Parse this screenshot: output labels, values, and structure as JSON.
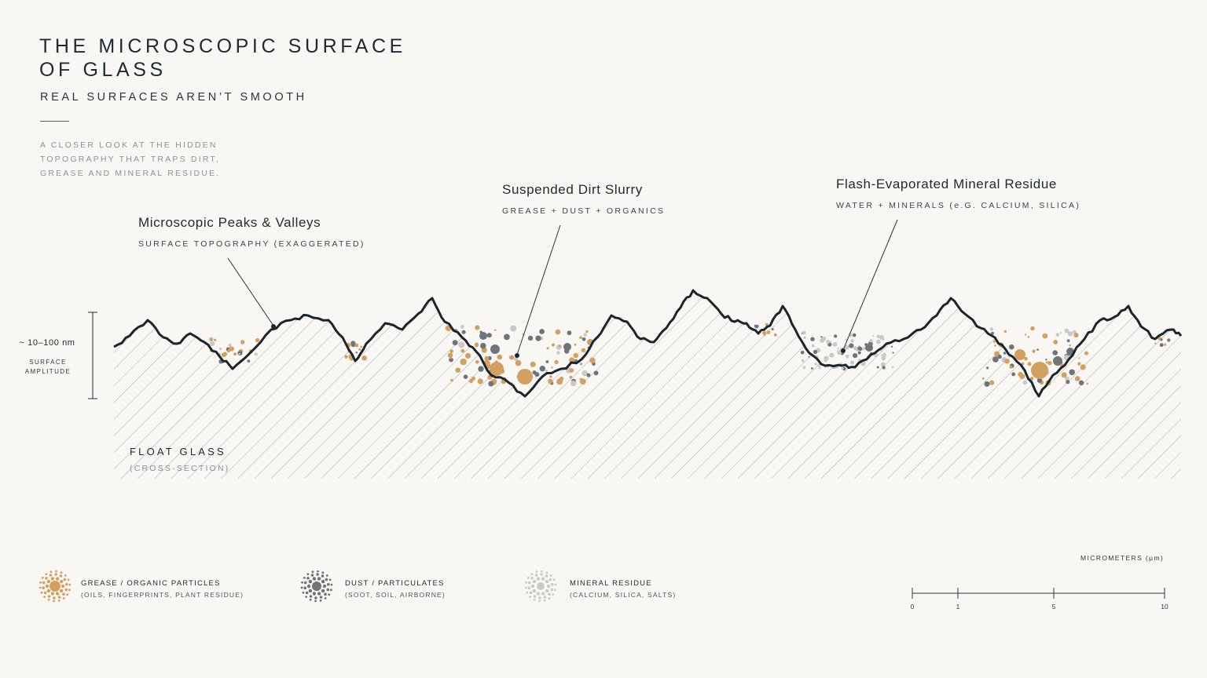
{
  "header": {
    "title_lines": [
      "THE MICROSCOPIC SURFACE",
      "OF GLASS"
    ],
    "subtitle": "REAL SURFACES AREN’T SMOOTH",
    "intro_lines": [
      "A CLOSER LOOK AT THE HIDDEN",
      "TOPOGRAPHY THAT TRAPS DIRT,",
      "GREASE AND MINERAL RESIDUE."
    ]
  },
  "callouts": [
    {
      "title": "Microscopic Peaks & Valleys",
      "subtitle": "SURFACE TOPOGRAPHY (EXAGGERATED)"
    },
    {
      "title": "Suspended Dirt Slurry",
      "subtitle": "GREASE + DUST + ORGANICS"
    },
    {
      "title": "Flash-Evaporated Mineral Residue",
      "subtitle": "WATER + MINERALS (e.G. CALCIUM, SILICA)"
    }
  ],
  "amplitude": {
    "value": "~ 10–100 nm",
    "label_lines": [
      "SURFACE",
      "AMPLITUDE"
    ]
  },
  "glass": {
    "name": "FLOAT GLASS",
    "subtitle": "(CROSS-SECTION)"
  },
  "legend": [
    {
      "title": "GREASE / ORGANIC PARTICLES",
      "subtitle": "(OILS, FINGERPRINTS, PLANT RESIDUE)",
      "icon": "grease-particle-icon",
      "color": "#d4a062"
    },
    {
      "title": "DUST / PARTICULATES",
      "subtitle": "(SOOT, SOIL, AIRBORNE)",
      "icon": "dust-particle-icon",
      "color": "#6f7478"
    },
    {
      "title": "MINERAL RESIDUE",
      "subtitle": "(CALCIUM, SILICA, SALTS)",
      "icon": "mineral-residue-icon",
      "color": "#c9cac8"
    }
  ],
  "scale": {
    "label": "MICROMETERS (μm)",
    "ticks": [
      "0",
      "1",
      "5",
      "10"
    ]
  },
  "colors": {
    "background": "#f8f7f3",
    "ink": "#1d2a31",
    "grease": "#d4a062",
    "dust": "#6f7478",
    "mineral": "#c9cac8"
  }
}
